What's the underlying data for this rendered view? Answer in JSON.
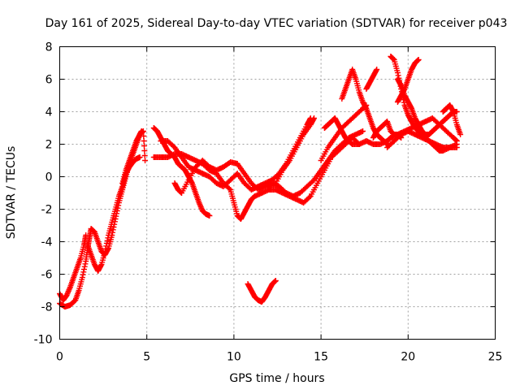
{
  "chart_data": {
    "type": "scatter",
    "title": "Day 161 of 2025, Sidereal Day-to-day VTEC variation (SDTVAR) for receiver p043",
    "xlabel": "GPS time / hours",
    "ylabel": "SDTVAR / TECUs",
    "xlim": [
      0,
      25
    ],
    "ylim": [
      -10,
      8
    ],
    "xticks": [
      0,
      5,
      10,
      15,
      20,
      25
    ],
    "yticks": [
      -10,
      -8,
      -6,
      -4,
      -2,
      0,
      2,
      4,
      6,
      8
    ],
    "grid": true,
    "marker": "+",
    "color": "#ff0000",
    "series": [
      {
        "points": [
          [
            0.0,
            -7.2
          ],
          [
            0.2,
            -7.6
          ],
          [
            0.4,
            -7.3
          ],
          [
            0.6,
            -6.8
          ],
          [
            0.8,
            -6.2
          ],
          [
            1.0,
            -5.6
          ],
          [
            1.2,
            -5.0
          ],
          [
            1.4,
            -4.2
          ],
          [
            1.5,
            -3.6
          ]
        ]
      },
      {
        "points": [
          [
            0.0,
            -7.8
          ],
          [
            0.3,
            -8.0
          ],
          [
            0.6,
            -7.9
          ],
          [
            0.9,
            -7.6
          ],
          [
            1.1,
            -7.0
          ],
          [
            1.3,
            -6.2
          ],
          [
            1.5,
            -5.2
          ],
          [
            1.6,
            -4.4
          ],
          [
            1.7,
            -3.8
          ],
          [
            1.8,
            -3.2
          ],
          [
            2.0,
            -3.4
          ],
          [
            2.2,
            -4.0
          ],
          [
            2.4,
            -4.6
          ],
          [
            2.6,
            -4.8
          ],
          [
            2.8,
            -4.4
          ],
          [
            3.0,
            -3.6
          ],
          [
            3.2,
            -2.6
          ],
          [
            3.4,
            -1.6
          ],
          [
            3.6,
            -0.8
          ],
          [
            3.8,
            0.0
          ],
          [
            4.0,
            0.8
          ],
          [
            4.2,
            1.4
          ],
          [
            4.4,
            2.0
          ],
          [
            4.6,
            2.6
          ],
          [
            4.7,
            2.8
          ]
        ]
      },
      {
        "points": [
          [
            1.6,
            -4.2
          ],
          [
            1.8,
            -4.8
          ],
          [
            2.0,
            -5.4
          ],
          [
            2.2,
            -5.8
          ],
          [
            2.4,
            -5.4
          ],
          [
            2.6,
            -4.6
          ],
          [
            2.8,
            -3.6
          ],
          [
            3.0,
            -2.8
          ],
          [
            3.2,
            -2.0
          ],
          [
            3.4,
            -1.2
          ],
          [
            3.6,
            -0.6
          ],
          [
            3.8,
            0.2
          ],
          [
            4.0,
            0.6
          ],
          [
            4.2,
            0.9
          ],
          [
            4.4,
            1.1
          ],
          [
            4.6,
            1.2
          ]
        ]
      },
      {
        "points": [
          [
            3.6,
            -0.4
          ],
          [
            3.8,
            0.4
          ],
          [
            4.0,
            1.0
          ],
          [
            4.2,
            1.6
          ],
          [
            4.4,
            2.2
          ],
          [
            4.6,
            2.6
          ],
          [
            4.8,
            2.8
          ],
          [
            4.9,
            1.0
          ]
        ]
      },
      {
        "points": [
          [
            5.4,
            3.0
          ],
          [
            5.6,
            2.8
          ],
          [
            5.8,
            2.4
          ],
          [
            6.0,
            2.0
          ],
          [
            6.2,
            1.6
          ],
          [
            6.4,
            1.4
          ],
          [
            6.6,
            1.2
          ],
          [
            6.8,
            0.8
          ],
          [
            7.0,
            0.6
          ],
          [
            7.2,
            0.4
          ],
          [
            7.4,
            0.0
          ],
          [
            7.6,
            -0.4
          ],
          [
            7.8,
            -1.0
          ],
          [
            8.0,
            -1.6
          ],
          [
            8.2,
            -2.1
          ],
          [
            8.4,
            -2.3
          ],
          [
            8.6,
            -2.4
          ]
        ]
      },
      {
        "points": [
          [
            5.4,
            1.2
          ],
          [
            5.8,
            1.2
          ],
          [
            6.2,
            1.2
          ],
          [
            6.6,
            1.4
          ],
          [
            7.0,
            1.4
          ],
          [
            7.4,
            1.2
          ],
          [
            7.8,
            1.0
          ],
          [
            8.2,
            0.8
          ],
          [
            8.6,
            0.4
          ],
          [
            9.0,
            0.2
          ],
          [
            9.4,
            -0.4
          ],
          [
            9.8,
            -0.8
          ],
          [
            10.0,
            -1.6
          ],
          [
            10.2,
            -2.4
          ],
          [
            10.4,
            -2.6
          ],
          [
            10.6,
            -2.2
          ],
          [
            10.8,
            -1.8
          ],
          [
            11.0,
            -1.4
          ],
          [
            11.2,
            -1.2
          ],
          [
            11.6,
            -1.0
          ],
          [
            12.0,
            -0.8
          ],
          [
            12.4,
            -0.8
          ],
          [
            12.8,
            -1.0
          ],
          [
            13.2,
            -1.2
          ],
          [
            13.6,
            -1.4
          ],
          [
            14.0,
            -1.6
          ],
          [
            14.4,
            -1.2
          ],
          [
            14.8,
            -0.4
          ],
          [
            15.2,
            0.4
          ],
          [
            15.6,
            1.2
          ],
          [
            16.0,
            1.6
          ],
          [
            16.4,
            2.0
          ],
          [
            16.8,
            2.4
          ],
          [
            17.2,
            2.0
          ]
        ]
      },
      {
        "points": [
          [
            5.8,
            2.2
          ],
          [
            6.2,
            2.2
          ],
          [
            6.6,
            1.8
          ],
          [
            7.0,
            1.2
          ],
          [
            7.4,
            0.6
          ],
          [
            7.8,
            0.4
          ],
          [
            8.2,
            0.2
          ],
          [
            8.6,
            0.0
          ],
          [
            9.0,
            -0.4
          ],
          [
            9.4,
            -0.6
          ],
          [
            9.8,
            -0.2
          ],
          [
            10.2,
            0.2
          ],
          [
            10.6,
            -0.4
          ],
          [
            11.0,
            -0.8
          ],
          [
            11.4,
            -0.6
          ],
          [
            11.8,
            -0.4
          ],
          [
            12.2,
            -0.2
          ],
          [
            12.6,
            0.2
          ],
          [
            13.0,
            0.8
          ],
          [
            13.4,
            1.6
          ],
          [
            13.8,
            2.4
          ],
          [
            14.2,
            3.2
          ],
          [
            14.4,
            3.6
          ]
        ]
      },
      {
        "points": [
          [
            6.6,
            -0.4
          ],
          [
            6.8,
            -0.8
          ],
          [
            7.0,
            -1.0
          ],
          [
            7.4,
            -0.2
          ],
          [
            7.8,
            0.6
          ],
          [
            8.2,
            1.0
          ],
          [
            8.6,
            0.6
          ],
          [
            9.0,
            0.4
          ],
          [
            9.4,
            0.6
          ],
          [
            9.8,
            0.9
          ],
          [
            10.2,
            0.8
          ],
          [
            10.6,
            0.2
          ],
          [
            11.0,
            -0.4
          ],
          [
            11.4,
            -0.8
          ],
          [
            11.8,
            -0.6
          ],
          [
            12.2,
            -0.4
          ],
          [
            12.6,
            -0.6
          ],
          [
            13.0,
            -1.0
          ],
          [
            13.4,
            -1.2
          ],
          [
            13.8,
            -1.0
          ],
          [
            14.2,
            -0.6
          ],
          [
            14.6,
            -0.2
          ],
          [
            15.0,
            0.4
          ],
          [
            15.4,
            1.0
          ],
          [
            15.8,
            1.6
          ],
          [
            16.2,
            2.0
          ],
          [
            16.6,
            2.4
          ],
          [
            17.0,
            2.6
          ],
          [
            17.4,
            2.8
          ]
        ]
      },
      {
        "points": [
          [
            12.0,
            -0.6
          ],
          [
            12.4,
            -0.4
          ],
          [
            12.8,
            0.4
          ],
          [
            13.2,
            1.0
          ],
          [
            13.6,
            1.8
          ],
          [
            14.0,
            2.6
          ],
          [
            14.4,
            3.2
          ],
          [
            14.6,
            3.6
          ]
        ]
      },
      {
        "points": [
          [
            10.8,
            -6.6
          ],
          [
            11.0,
            -7.0
          ],
          [
            11.2,
            -7.4
          ],
          [
            11.4,
            -7.6
          ],
          [
            11.6,
            -7.7
          ],
          [
            11.8,
            -7.4
          ],
          [
            12.0,
            -7.0
          ],
          [
            12.2,
            -6.6
          ],
          [
            12.4,
            -6.4
          ]
        ]
      },
      {
        "points": [
          [
            15.2,
            3.0
          ],
          [
            15.4,
            3.2
          ],
          [
            15.6,
            3.4
          ],
          [
            15.8,
            3.6
          ],
          [
            16.0,
            3.2
          ],
          [
            16.2,
            2.8
          ],
          [
            16.4,
            2.4
          ],
          [
            16.6,
            2.2
          ],
          [
            16.8,
            2.0
          ],
          [
            17.2,
            2.0
          ],
          [
            17.6,
            2.2
          ],
          [
            18.0,
            2.0
          ],
          [
            18.4,
            2.0
          ],
          [
            18.8,
            2.2
          ]
        ]
      },
      {
        "points": [
          [
            15.0,
            1.0
          ],
          [
            15.4,
            1.8
          ],
          [
            15.8,
            2.4
          ],
          [
            16.2,
            3.0
          ],
          [
            16.6,
            3.4
          ],
          [
            17.0,
            3.8
          ],
          [
            17.4,
            4.2
          ],
          [
            17.6,
            4.4
          ]
        ]
      },
      {
        "points": [
          [
            16.2,
            4.8
          ],
          [
            16.4,
            5.4
          ],
          [
            16.6,
            6.0
          ],
          [
            16.8,
            6.6
          ],
          [
            17.0,
            6.0
          ],
          [
            17.2,
            5.2
          ],
          [
            17.4,
            4.6
          ],
          [
            17.6,
            4.2
          ],
          [
            17.8,
            3.6
          ],
          [
            18.0,
            3.0
          ],
          [
            18.2,
            2.6
          ],
          [
            18.4,
            2.4
          ],
          [
            18.6,
            2.2
          ],
          [
            18.8,
            2.0
          ]
        ]
      },
      {
        "points": [
          [
            17.6,
            5.4
          ],
          [
            17.8,
            5.8
          ],
          [
            18.0,
            6.2
          ],
          [
            18.2,
            6.6
          ]
        ]
      },
      {
        "points": [
          [
            18.0,
            2.4
          ],
          [
            18.2,
            2.8
          ],
          [
            18.4,
            3.0
          ],
          [
            18.6,
            3.2
          ],
          [
            18.8,
            3.4
          ],
          [
            19.0,
            2.8
          ],
          [
            19.2,
            2.6
          ],
          [
            19.4,
            2.6
          ],
          [
            19.6,
            2.4
          ]
        ]
      },
      {
        "points": [
          [
            18.8,
            2.2
          ],
          [
            19.0,
            2.4
          ],
          [
            19.4,
            2.6
          ],
          [
            19.8,
            2.8
          ],
          [
            20.2,
            3.0
          ],
          [
            20.6,
            3.2
          ],
          [
            21.0,
            3.4
          ],
          [
            21.4,
            3.6
          ],
          [
            21.8,
            3.2
          ],
          [
            22.2,
            2.8
          ],
          [
            22.6,
            2.4
          ],
          [
            22.8,
            2.2
          ]
        ]
      },
      {
        "points": [
          [
            18.8,
            1.8
          ],
          [
            19.2,
            2.2
          ],
          [
            19.6,
            2.6
          ],
          [
            20.0,
            2.8
          ],
          [
            20.4,
            2.6
          ],
          [
            20.8,
            2.4
          ],
          [
            21.2,
            2.2
          ],
          [
            21.6,
            2.0
          ],
          [
            22.0,
            1.8
          ],
          [
            22.4,
            1.8
          ],
          [
            22.8,
            2.0
          ]
        ]
      },
      {
        "points": [
          [
            19.0,
            7.4
          ],
          [
            19.2,
            7.2
          ],
          [
            19.4,
            6.4
          ],
          [
            19.6,
            5.4
          ],
          [
            19.8,
            4.4
          ],
          [
            20.0,
            3.8
          ],
          [
            20.2,
            3.4
          ],
          [
            20.4,
            3.0
          ],
          [
            20.6,
            2.8
          ],
          [
            20.8,
            2.6
          ],
          [
            21.0,
            2.4
          ],
          [
            21.2,
            2.2
          ],
          [
            21.4,
            2.0
          ],
          [
            21.6,
            1.8
          ],
          [
            21.8,
            1.6
          ],
          [
            22.0,
            1.6
          ],
          [
            22.4,
            1.8
          ],
          [
            22.8,
            1.8
          ]
        ]
      },
      {
        "points": [
          [
            19.4,
            6.0
          ],
          [
            19.6,
            5.6
          ],
          [
            19.8,
            5.0
          ],
          [
            20.0,
            4.6
          ],
          [
            20.2,
            4.2
          ],
          [
            20.4,
            3.6
          ],
          [
            20.6,
            3.2
          ],
          [
            20.8,
            2.8
          ],
          [
            21.0,
            2.6
          ],
          [
            21.2,
            2.6
          ],
          [
            21.4,
            2.8
          ],
          [
            21.6,
            3.0
          ],
          [
            21.8,
            3.2
          ],
          [
            22.0,
            3.4
          ],
          [
            22.2,
            3.6
          ],
          [
            22.4,
            3.8
          ],
          [
            22.6,
            4.0
          ],
          [
            22.8,
            4.0
          ]
        ]
      },
      {
        "points": [
          [
            19.4,
            4.6
          ],
          [
            19.6,
            5.0
          ],
          [
            19.8,
            5.4
          ],
          [
            20.0,
            6.0
          ],
          [
            20.2,
            6.6
          ],
          [
            20.4,
            7.0
          ],
          [
            20.6,
            7.2
          ]
        ]
      },
      {
        "points": [
          [
            22.0,
            4.0
          ],
          [
            22.2,
            4.2
          ],
          [
            22.4,
            4.4
          ],
          [
            22.6,
            4.0
          ],
          [
            22.8,
            3.2
          ],
          [
            23.0,
            2.6
          ]
        ]
      }
    ]
  }
}
